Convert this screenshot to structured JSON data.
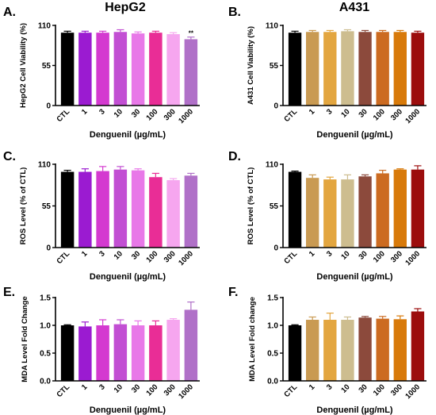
{
  "chart_data": [
    {
      "type": "bar",
      "panel": "A.",
      "title": "HepG2",
      "ylabel": "HepG2 Cell Viability (%)",
      "xlabel": "Denguenil (µg/mL)",
      "categories": [
        "CTL",
        "1",
        "3",
        "10",
        "30",
        "100",
        "300",
        "1000"
      ],
      "values": [
        100,
        100,
        100,
        101,
        99,
        100,
        98,
        91
      ],
      "errors": [
        2,
        2,
        2,
        3,
        2,
        2,
        2,
        3
      ],
      "significance": [
        "",
        "",
        "",
        "",
        "",
        "",
        "",
        "**"
      ],
      "colors": [
        "#000000",
        "#9b1bd1",
        "#d43ad0",
        "#c24fd3",
        "#e878e8",
        "#e92d96",
        "#f6a6ef",
        "#b070c8"
      ],
      "ylim": [
        0,
        110
      ],
      "yticks": [
        "0",
        "55",
        "110"
      ]
    },
    {
      "type": "bar",
      "panel": "B.",
      "title": "A431",
      "ylabel": "A431 Cell Viability (%)",
      "xlabel": "Denguenil (µg/mL)",
      "categories": [
        "CTL",
        "1",
        "3",
        "10",
        "30",
        "100",
        "300",
        "1000"
      ],
      "values": [
        100,
        101,
        101,
        102,
        101,
        101,
        101,
        100
      ],
      "errors": [
        2,
        2,
        2,
        2,
        2,
        2,
        2,
        2
      ],
      "significance": [
        "",
        "",
        "",
        "",
        "",
        "",
        "",
        ""
      ],
      "colors": [
        "#000000",
        "#c99a52",
        "#e3a640",
        "#cdbd8f",
        "#8c4a3c",
        "#cc6b21",
        "#d87a0a",
        "#9c0d0d"
      ],
      "ylim": [
        0,
        110
      ],
      "yticks": [
        "0",
        "55",
        "110"
      ]
    },
    {
      "type": "bar",
      "panel": "C.",
      "title": "",
      "ylabel": "ROS Level (% of CTL)",
      "xlabel": "Denguenil (µg/mL)",
      "categories": [
        "CTL",
        "1",
        "3",
        "10",
        "30",
        "100",
        "300",
        "1000"
      ],
      "values": [
        100,
        100,
        101,
        103,
        102,
        93,
        89,
        95
      ],
      "errors": [
        2,
        4,
        6,
        4,
        2,
        5,
        2,
        3
      ],
      "significance": [
        "",
        "",
        "",
        "",
        "",
        "",
        "",
        ""
      ],
      "colors": [
        "#000000",
        "#9b1bd1",
        "#d43ad0",
        "#c24fd3",
        "#e878e8",
        "#e92d96",
        "#f6a6ef",
        "#b070c8"
      ],
      "ylim": [
        0,
        110
      ],
      "yticks": [
        "0",
        "55",
        "110"
      ]
    },
    {
      "type": "bar",
      "panel": "D.",
      "title": "",
      "ylabel": "ROS Level (% of CTL)",
      "xlabel": "Denguenil (µg/mL)",
      "categories": [
        "CTL",
        "1",
        "3",
        "10",
        "30",
        "100",
        "300",
        "1000"
      ],
      "values": [
        100,
        92,
        90,
        90,
        94,
        98,
        103,
        103
      ],
      "errors": [
        1,
        4,
        3,
        6,
        2,
        4,
        1,
        5
      ],
      "significance": [
        "",
        "",
        "",
        "",
        "",
        "",
        "",
        ""
      ],
      "colors": [
        "#000000",
        "#c99a52",
        "#e3a640",
        "#cdbd8f",
        "#8c4a3c",
        "#cc6b21",
        "#d87a0a",
        "#9c0d0d"
      ],
      "ylim": [
        0,
        110
      ],
      "yticks": [
        "0",
        "55",
        "110"
      ]
    },
    {
      "type": "bar",
      "panel": "E.",
      "title": "",
      "ylabel": "MDA Level Fold Change",
      "xlabel": "Denguenil (µg/mL)",
      "categories": [
        "CTL",
        "1",
        "3",
        "10",
        "30",
        "100",
        "300",
        "1000"
      ],
      "values": [
        1.0,
        0.98,
        1.0,
        1.02,
        1.0,
        1.0,
        1.1,
        1.28
      ],
      "errors": [
        0.01,
        0.08,
        0.1,
        0.08,
        0.08,
        0.08,
        0.02,
        0.14
      ],
      "significance": [
        "",
        "",
        "",
        "",
        "",
        "",
        "",
        ""
      ],
      "colors": [
        "#000000",
        "#9b1bd1",
        "#d43ad0",
        "#c24fd3",
        "#e878e8",
        "#e92d96",
        "#f6a6ef",
        "#b070c8"
      ],
      "ylim": [
        0,
        1.5
      ],
      "yticks": [
        "0.0",
        "0.5",
        "1.0",
        "1.5"
      ]
    },
    {
      "type": "bar",
      "panel": "F.",
      "title": "",
      "ylabel": "MDA Level Fold change",
      "xlabel": "Denguenil (µg/mL)",
      "categories": [
        "CTL",
        "1",
        "3",
        "10",
        "30",
        "100",
        "300",
        "1000"
      ],
      "values": [
        1.0,
        1.1,
        1.1,
        1.1,
        1.14,
        1.12,
        1.11,
        1.25
      ],
      "errors": [
        0.01,
        0.05,
        0.12,
        0.05,
        0.02,
        0.04,
        0.06,
        0.05
      ],
      "significance": [
        "",
        "",
        "",
        "",
        "",
        "",
        "",
        ""
      ],
      "colors": [
        "#000000",
        "#c99a52",
        "#e3a640",
        "#cdbd8f",
        "#8c4a3c",
        "#cc6b21",
        "#d87a0a",
        "#9c0d0d"
      ],
      "ylim": [
        0,
        1.5
      ],
      "yticks": [
        "0.0",
        "0.5",
        "1.0",
        "1.5"
      ]
    }
  ]
}
